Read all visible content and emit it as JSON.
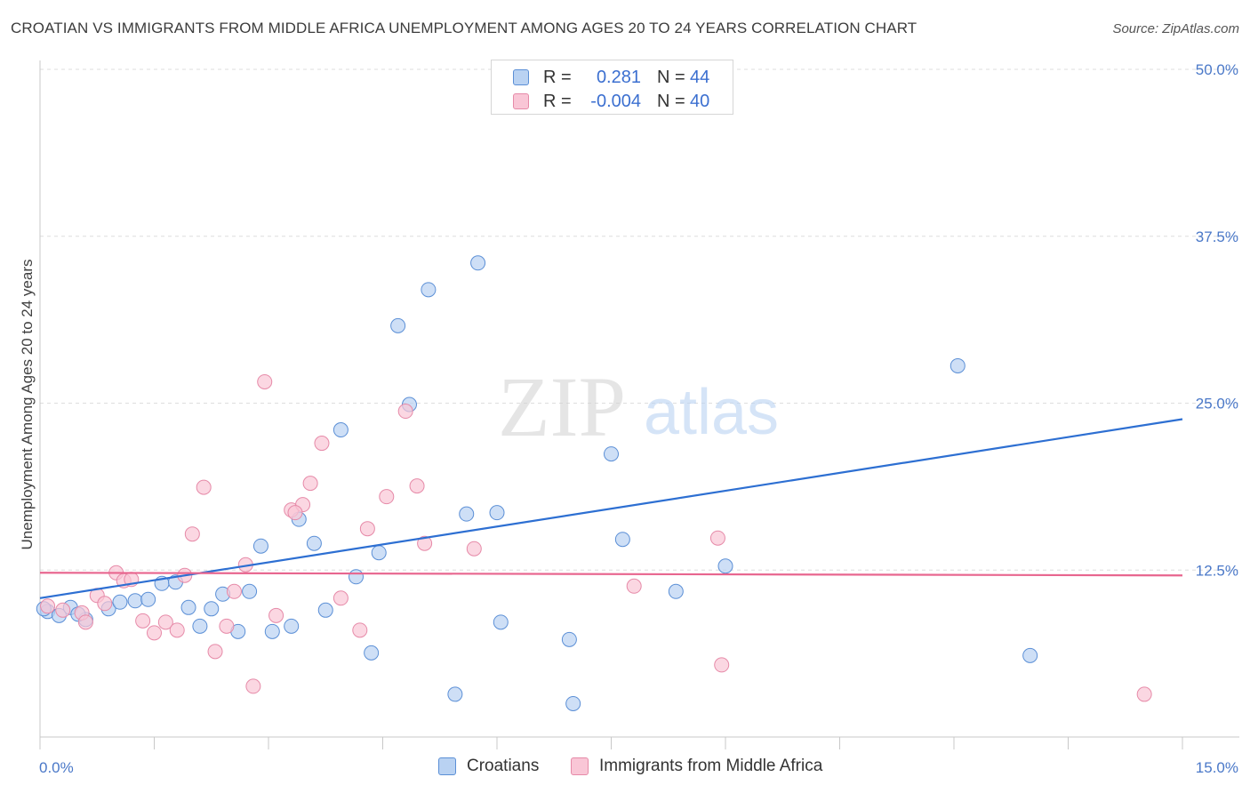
{
  "header": {
    "title": "CROATIAN VS IMMIGRANTS FROM MIDDLE AFRICA UNEMPLOYMENT AMONG AGES 20 TO 24 YEARS CORRELATION CHART",
    "source": "Source: ZipAtlas.com"
  },
  "legend": {
    "rows": [
      {
        "r_label": "R =",
        "r_value": "0.281",
        "n_label": "N =",
        "n_value": "44"
      },
      {
        "r_label": "R =",
        "r_value": "-0.004",
        "n_label": "N =",
        "n_value": "40"
      }
    ]
  },
  "bottom_legend": {
    "items": [
      {
        "label": "Croatians"
      },
      {
        "label": "Immigrants from Middle Africa"
      }
    ]
  },
  "watermark": {
    "zip": "ZIP",
    "atlas": "atlas"
  },
  "chart_data": {
    "type": "scatter",
    "title": "CROATIAN VS IMMIGRANTS FROM MIDDLE AFRICA UNEMPLOYMENT AMONG AGES 20 TO 24 YEARS CORRELATION CHART",
    "xlabel": "",
    "ylabel": "Unemployment Among Ages 20 to 24 years",
    "xlim": [
      0,
      15
    ],
    "ylim": [
      0,
      50
    ],
    "x_tick_labels": [
      "0.0%",
      "15.0%"
    ],
    "y_ticks": [
      12.5,
      25.0,
      37.5,
      50.0
    ],
    "y_tick_labels": [
      "12.5%",
      "25.0%",
      "37.5%",
      "50.0%"
    ],
    "colors": {
      "Croatians_fill": "#b9d2f2",
      "Croatians_stroke": "#5b8fd6",
      "Croatians_line": "#2d6fd2",
      "Immigrants_fill": "#f9c6d6",
      "Immigrants_stroke": "#e68aa8",
      "Immigrants_line": "#e8668f",
      "grid": "#dedede"
    },
    "series": [
      {
        "name": "Croatians",
        "R": 0.281,
        "N": 44,
        "trendline": {
          "x": [
            0,
            15
          ],
          "y": [
            10.4,
            23.8
          ]
        },
        "points": [
          [
            0.1,
            9.4
          ],
          [
            0.25,
            9.1
          ],
          [
            0.4,
            9.7
          ],
          [
            0.6,
            8.8
          ],
          [
            0.9,
            9.6
          ],
          [
            1.05,
            10.1
          ],
          [
            1.25,
            10.2
          ],
          [
            1.42,
            10.3
          ],
          [
            1.6,
            11.5
          ],
          [
            1.78,
            11.6
          ],
          [
            1.95,
            9.7
          ],
          [
            2.1,
            8.3
          ],
          [
            2.25,
            9.6
          ],
          [
            2.4,
            10.7
          ],
          [
            2.6,
            7.9
          ],
          [
            2.75,
            10.9
          ],
          [
            2.9,
            14.3
          ],
          [
            3.05,
            7.9
          ],
          [
            3.3,
            8.3
          ],
          [
            3.4,
            16.3
          ],
          [
            3.6,
            14.5
          ],
          [
            3.75,
            9.5
          ],
          [
            3.95,
            23.0
          ],
          [
            4.15,
            12.0
          ],
          [
            4.35,
            6.3
          ],
          [
            4.45,
            13.8
          ],
          [
            4.7,
            30.8
          ],
          [
            4.85,
            24.9
          ],
          [
            5.1,
            33.5
          ],
          [
            5.45,
            3.2
          ],
          [
            5.6,
            16.7
          ],
          [
            5.75,
            35.5
          ],
          [
            6.0,
            16.8
          ],
          [
            6.05,
            8.6
          ],
          [
            6.95,
            7.3
          ],
          [
            7.0,
            2.5
          ],
          [
            7.5,
            21.2
          ],
          [
            7.65,
            14.8
          ],
          [
            8.35,
            10.9
          ],
          [
            9.0,
            12.8
          ],
          [
            12.05,
            27.8
          ],
          [
            13.0,
            6.1
          ],
          [
            0.05,
            9.6
          ],
          [
            0.5,
            9.2
          ]
        ]
      },
      {
        "name": "Immigrants from Middle Africa",
        "R": -0.004,
        "N": 40,
        "trendline": {
          "x": [
            0,
            15
          ],
          "y": [
            12.3,
            12.1
          ]
        },
        "points": [
          [
            0.1,
            9.8
          ],
          [
            0.3,
            9.5
          ],
          [
            0.55,
            9.3
          ],
          [
            0.6,
            8.6
          ],
          [
            0.75,
            10.6
          ],
          [
            0.85,
            10.0
          ],
          [
            1.0,
            12.3
          ],
          [
            1.1,
            11.7
          ],
          [
            1.2,
            11.8
          ],
          [
            1.35,
            8.7
          ],
          [
            1.5,
            7.8
          ],
          [
            1.65,
            8.6
          ],
          [
            1.8,
            8.0
          ],
          [
            1.9,
            12.1
          ],
          [
            2.0,
            15.2
          ],
          [
            2.15,
            18.7
          ],
          [
            2.3,
            6.4
          ],
          [
            2.45,
            8.3
          ],
          [
            2.55,
            10.9
          ],
          [
            2.7,
            12.9
          ],
          [
            2.8,
            3.8
          ],
          [
            2.95,
            26.6
          ],
          [
            3.1,
            9.1
          ],
          [
            3.3,
            17.0
          ],
          [
            3.45,
            17.4
          ],
          [
            3.55,
            19.0
          ],
          [
            3.7,
            22.0
          ],
          [
            3.95,
            10.4
          ],
          [
            4.2,
            8.0
          ],
          [
            4.3,
            15.6
          ],
          [
            4.55,
            18.0
          ],
          [
            4.8,
            24.4
          ],
          [
            4.95,
            18.8
          ],
          [
            5.05,
            14.5
          ],
          [
            5.7,
            14.1
          ],
          [
            7.8,
            11.3
          ],
          [
            8.9,
            14.9
          ],
          [
            8.95,
            5.4
          ],
          [
            14.5,
            3.2
          ],
          [
            3.35,
            16.8
          ]
        ]
      }
    ]
  }
}
